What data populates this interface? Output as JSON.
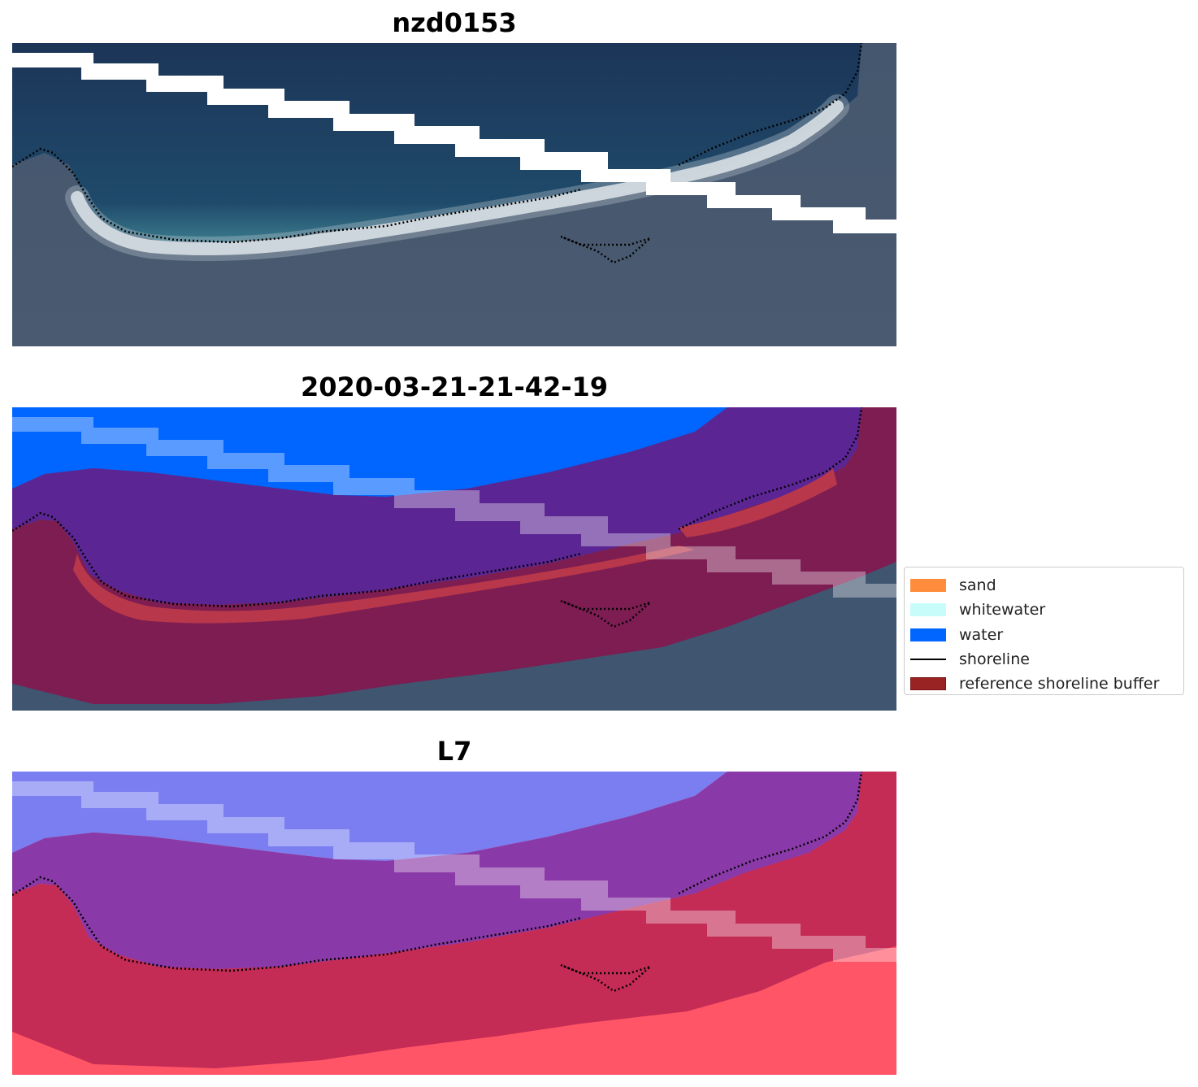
{
  "panels": [
    {
      "title": "nzd0153",
      "kind": "rgb"
    },
    {
      "title": "2020-03-21-21-42-19",
      "kind": "classified"
    },
    {
      "title": "L7",
      "kind": "index"
    }
  ],
  "legend": {
    "items": [
      {
        "label": "sand",
        "type": "patch",
        "color": "#ff8c3a"
      },
      {
        "label": "whitewater",
        "type": "patch",
        "color": "#c8fcfa"
      },
      {
        "label": "water",
        "type": "patch",
        "color": "#0066ff"
      },
      {
        "label": "shoreline",
        "type": "line",
        "color": "#000000"
      },
      {
        "label": "reference shoreline buffer",
        "type": "patch",
        "color": "#992222",
        "edge": "#7a1414"
      }
    ]
  },
  "colors": {
    "ocean": "#1e3a5f",
    "land": "#3d5068",
    "water_class": "#0066ff",
    "buffer": "#8b1a4d",
    "buffer_water": "#5b2694",
    "sand_in_buffer": "#b8374a",
    "nodata_stripe": "#ffffff",
    "index_water": "#7a7ef0",
    "index_land": "#ff5566"
  }
}
